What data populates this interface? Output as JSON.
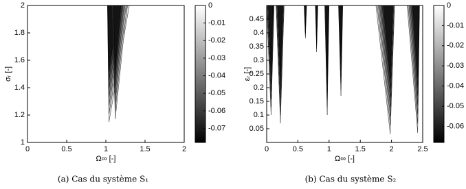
{
  "chart_data": [
    {
      "type": "contour",
      "caption": "(a) Cas du système S₁",
      "xlabel": "Ω∞ [-]",
      "ylabel": "σᵣ [-]",
      "xlim": [
        0,
        2
      ],
      "ylim": [
        1,
        2
      ],
      "xticks": [
        0,
        0.5,
        1,
        1.5,
        2
      ],
      "yticks": [
        1,
        1.2,
        1.4,
        1.6,
        1.8,
        2
      ],
      "clim": [
        -0.078,
        0
      ],
      "cticks": [
        0,
        -0.01,
        -0.02,
        -0.03,
        -0.04,
        -0.05,
        -0.06,
        -0.07
      ],
      "wedges": [
        {
          "x": [
            1.02,
            1.3,
            1.04
          ],
          "y": 1.15
        },
        {
          "x": [
            1.08,
            1.27,
            1.12
          ],
          "y": 1.17
        }
      ]
    },
    {
      "type": "contour",
      "caption": "(b) Cas du système S₂",
      "xlabel": "Ω∞ [-]",
      "ylabel": "εᵣ [-]",
      "xlim": [
        0,
        2.5
      ],
      "ylim": [
        0,
        0.5
      ],
      "xticks": [
        0,
        0.5,
        1,
        1.5,
        2,
        2.5
      ],
      "yticks": [
        0.05,
        0.1,
        0.15,
        0.2,
        0.25,
        0.3,
        0.35,
        0.4,
        0.45
      ],
      "clim": [
        -0.068,
        0
      ],
      "cticks": [
        0,
        -0.01,
        -0.02,
        -0.03,
        -0.04,
        -0.05,
        -0.06
      ],
      "wedges": [
        {
          "x": [
            0.0,
            0.12,
            0.07
          ],
          "y": 0.1
        },
        {
          "x": [
            0.15,
            0.28,
            0.22
          ],
          "y": 0.07
        },
        {
          "x": [
            0.6,
            0.64,
            0.62
          ],
          "y": 0.38
        },
        {
          "x": [
            0.78,
            0.82,
            0.8
          ],
          "y": 0.33
        },
        {
          "x": [
            0.93,
            1.0,
            0.97
          ],
          "y": 0.1
        },
        {
          "x": [
            1.15,
            1.22,
            1.19
          ],
          "y": 0.17
        },
        {
          "x": [
            1.75,
            2.05,
            1.98
          ],
          "y": 0.03
        },
        {
          "x": [
            2.25,
            2.45,
            2.42
          ],
          "y": 0.035
        }
      ]
    }
  ]
}
